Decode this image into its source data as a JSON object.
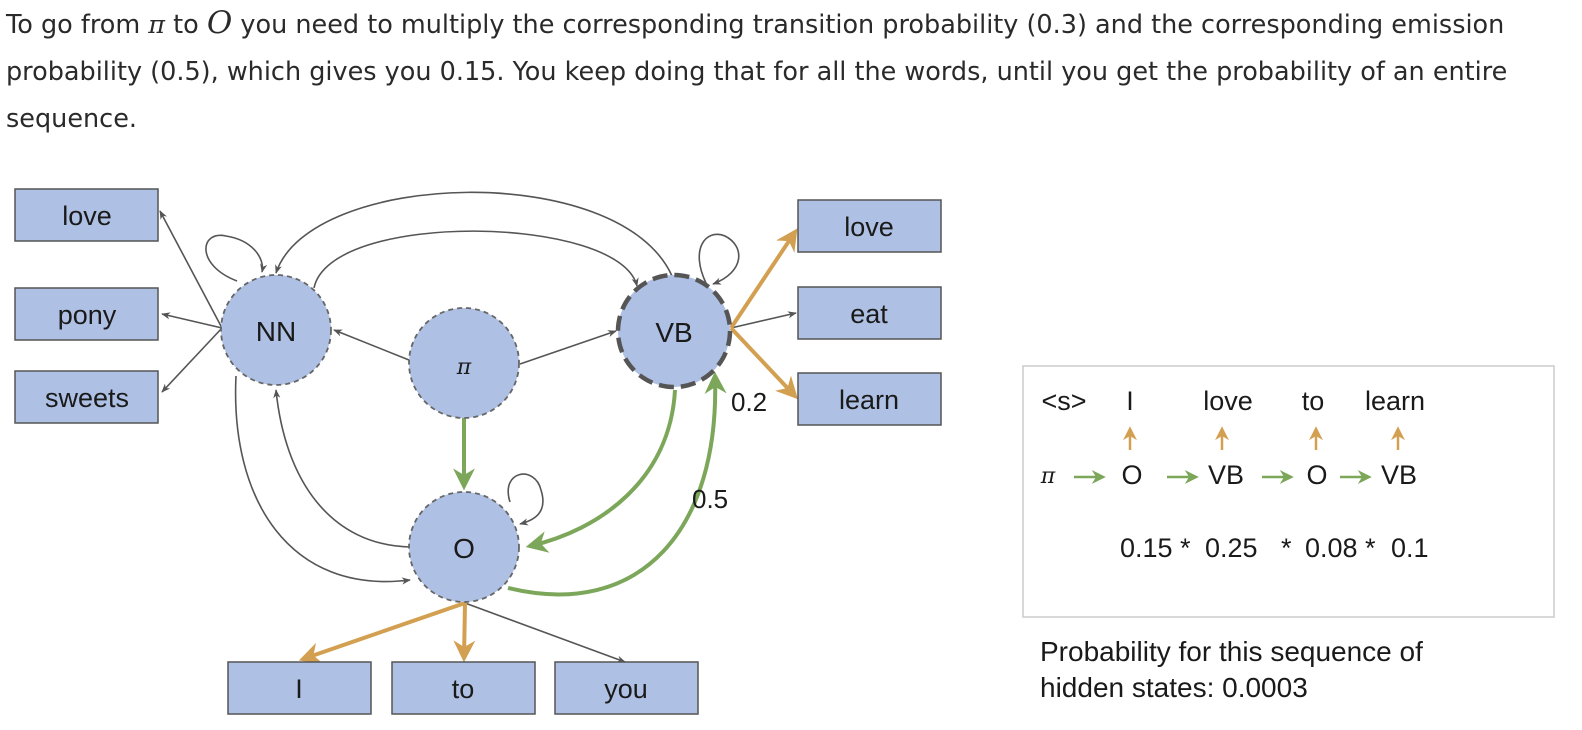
{
  "paragraph": {
    "p1": "To go from ",
    "sym_pi": "π",
    "p2": " to ",
    "sym_o": "O",
    "p3": " you need to multiply the corresponding transition probability (0.3) and the corresponding emission probability (0.5), which gives you 0.15. You keep doing that for all the words, until you get the probability of an entire sequence."
  },
  "diagram": {
    "nodes": {
      "nn": "NN",
      "vb": "VB",
      "o": "O",
      "pi": "π"
    },
    "nn_words": [
      "love",
      "pony",
      "sweets"
    ],
    "vb_words": [
      "love",
      "eat",
      "learn"
    ],
    "o_words": [
      "I",
      "to",
      "you"
    ],
    "edge_labels": {
      "vb_emission": "0.2",
      "o_to_vb": "0.5"
    }
  },
  "sequence_box": {
    "tokens": [
      "<s>",
      "I",
      "love",
      "to",
      "learn"
    ],
    "start_symbol": "π",
    "states": [
      "O",
      "VB",
      "O",
      "VB"
    ],
    "products": [
      "0.15 *",
      "0.25",
      "*",
      "0.08 *",
      "0.1"
    ]
  },
  "result": {
    "line1": "Probability for this sequence of",
    "line2": "hidden states: 0.0003"
  },
  "colors": {
    "node_fill": "#aec0e3",
    "box_fill": "#aec0e3",
    "green_arrow": "#7ca75a",
    "orange_arrow": "#d3a052",
    "gray_arrow": "#555555"
  }
}
